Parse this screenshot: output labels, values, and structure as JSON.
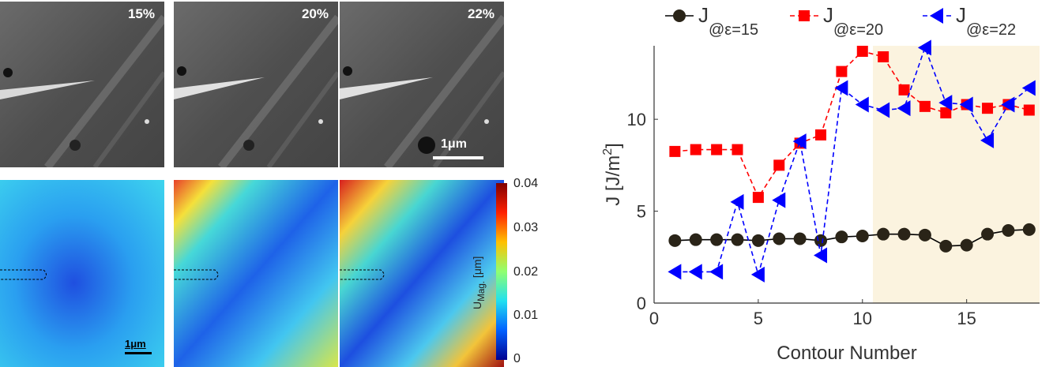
{
  "sem_panels": [
    {
      "label": "15%"
    },
    {
      "label": "20%"
    },
    {
      "label": "22%"
    }
  ],
  "sem_scale_bar": "1μm",
  "map_scale_bar": "1μm",
  "colorbar": {
    "ticks": [
      "0.04",
      "0.03",
      "0.02",
      "0.01",
      "0"
    ],
    "label_main": "U",
    "label_sub": "Mag.",
    "label_unit": "[μm]"
  },
  "colors": {
    "series1": "#000000",
    "series2": "#ff0000",
    "series3": "#0000ff",
    "shade": "#fbf3df"
  },
  "chart_data": {
    "type": "line",
    "xlabel": "Contour Number",
    "ylabel": "J [J/m²]",
    "ylabel_main": "J [J/m",
    "ylabel_sup": "2",
    "ylabel_end": "]",
    "xlim": [
      0,
      18.5
    ],
    "ylim": [
      0,
      14
    ],
    "xticks": [
      0,
      5,
      10,
      15
    ],
    "yticks": [
      0,
      5,
      10
    ],
    "shaded_region": [
      10.5,
      18.5
    ],
    "legend_position": "top",
    "series": [
      {
        "name": "J",
        "sub": "@ε=15",
        "marker": "circle",
        "x": [
          1,
          2,
          3,
          4,
          5,
          6,
          7,
          8,
          9,
          10,
          11,
          12,
          13,
          14,
          15,
          16,
          17,
          18
        ],
        "values": [
          3.4,
          3.45,
          3.45,
          3.45,
          3.4,
          3.5,
          3.5,
          3.4,
          3.6,
          3.65,
          3.75,
          3.75,
          3.7,
          3.1,
          3.15,
          3.75,
          3.95,
          4.0
        ]
      },
      {
        "name": "J",
        "sub": "@ε=20",
        "marker": "square",
        "x": [
          1,
          2,
          3,
          4,
          5,
          6,
          7,
          8,
          9,
          10,
          11,
          12,
          13,
          14,
          15,
          16,
          17,
          18
        ],
        "values": [
          8.25,
          8.35,
          8.35,
          8.35,
          5.75,
          7.5,
          8.7,
          9.15,
          12.6,
          13.7,
          13.4,
          11.6,
          10.7,
          10.35,
          10.8,
          10.6,
          10.8,
          10.5
        ]
      },
      {
        "name": "J",
        "sub": "@ε=22",
        "marker": "triangle-left",
        "x": [
          1,
          2,
          3,
          4,
          5,
          6,
          7,
          8,
          9,
          10,
          11,
          12,
          13,
          14,
          15,
          16,
          17,
          18
        ],
        "values": [
          1.7,
          1.7,
          1.7,
          5.5,
          1.55,
          5.6,
          8.8,
          2.6,
          11.7,
          10.8,
          10.5,
          10.6,
          13.9,
          10.9,
          10.8,
          8.85,
          10.8,
          11.7
        ]
      }
    ]
  }
}
